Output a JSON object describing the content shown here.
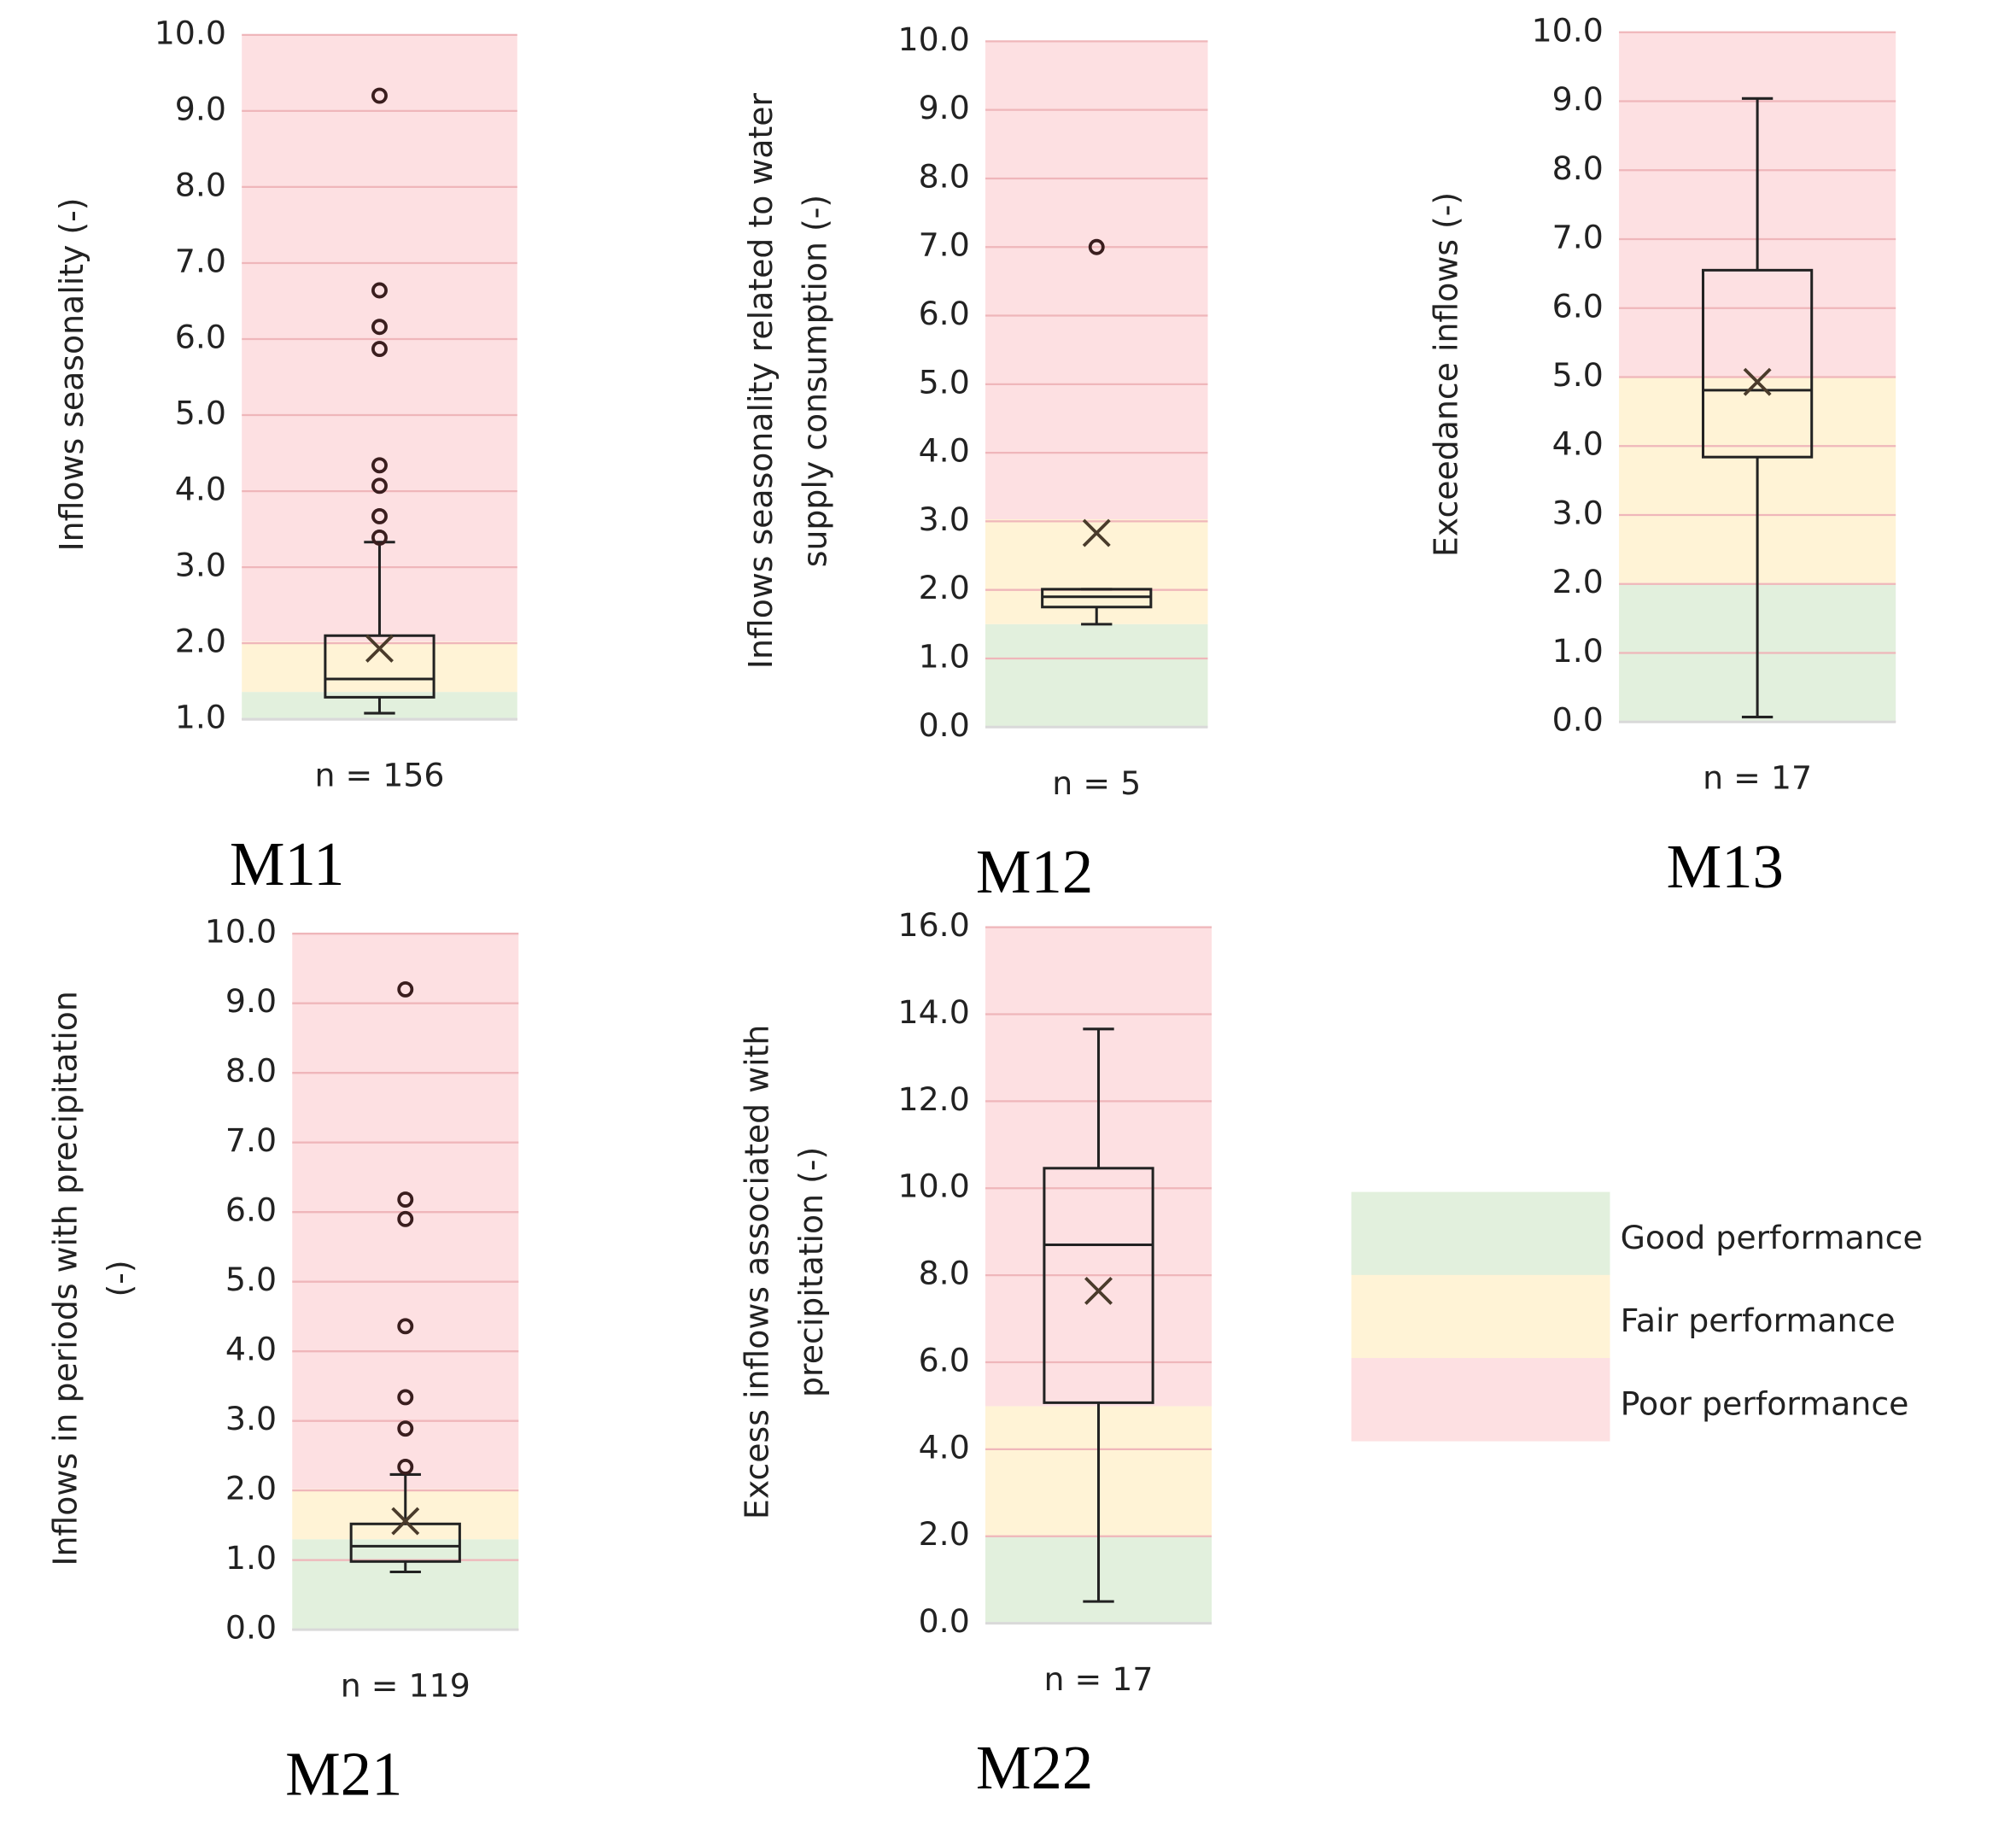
{
  "chart_data": [
    {
      "type": "box",
      "title": "M11",
      "y_label": [
        "Inflows seasonality (-)"
      ],
      "n_label": "n = 156",
      "ylim": [
        1,
        10
      ],
      "yticks": [
        {
          "value": 1,
          "label": "1.0"
        },
        {
          "value": 2,
          "label": "2.0"
        },
        {
          "value": 3,
          "label": "3.0"
        },
        {
          "value": 4,
          "label": "4.0"
        },
        {
          "value": 5,
          "label": "5.0"
        },
        {
          "value": 6,
          "label": "6.0"
        },
        {
          "value": 7,
          "label": "7.0"
        },
        {
          "value": 8,
          "label": "8.0"
        },
        {
          "value": 9,
          "label": "9.0"
        },
        {
          "value": 10,
          "label": "10.0"
        }
      ],
      "box": {
        "min": 1.08,
        "q1": 1.29,
        "median": 1.53,
        "q3": 2.1,
        "max": 3.33,
        "mean": 1.93
      },
      "outliers": [
        9.2,
        6.64,
        6.16,
        5.87,
        4.34,
        4.07,
        3.67,
        3.39
      ],
      "bands": [
        [
          1,
          1.36
        ],
        [
          1.36,
          2.02
        ],
        [
          2.02,
          10
        ]
      ]
    },
    {
      "type": "box",
      "title": "M12",
      "y_label": [
        "Inflows seasonality related to water",
        "supply consumption (-)"
      ],
      "n_label": "n = 5",
      "ylim": [
        0,
        10
      ],
      "yticks": [
        {
          "value": 0,
          "label": "0.0"
        },
        {
          "value": 1,
          "label": "1.0"
        },
        {
          "value": 2,
          "label": "2.0"
        },
        {
          "value": 3,
          "label": "3.0"
        },
        {
          "value": 4,
          "label": "4.0"
        },
        {
          "value": 5,
          "label": "5.0"
        },
        {
          "value": 6,
          "label": "6.0"
        },
        {
          "value": 7,
          "label": "7.0"
        },
        {
          "value": 8,
          "label": "8.0"
        },
        {
          "value": 9,
          "label": "9.0"
        },
        {
          "value": 10,
          "label": "10.0"
        }
      ],
      "box": {
        "min": 1.5,
        "q1": 1.75,
        "median": 1.9,
        "q3": 2.01,
        "max": 2.01,
        "mean": 2.83
      },
      "outliers": [
        7.0
      ],
      "bands": [
        [
          0,
          1.5
        ],
        [
          1.5,
          3.03
        ],
        [
          3.03,
          10
        ]
      ]
    },
    {
      "type": "box",
      "title": "M13",
      "y_label": [
        "Exceedance inflows (-)"
      ],
      "n_label": "n = 17",
      "ylim": [
        0,
        10
      ],
      "yticks": [
        {
          "value": 0,
          "label": "0.0"
        },
        {
          "value": 1,
          "label": "1.0"
        },
        {
          "value": 2,
          "label": "2.0"
        },
        {
          "value": 3,
          "label": "3.0"
        },
        {
          "value": 4,
          "label": "4.0"
        },
        {
          "value": 5,
          "label": "5.0"
        },
        {
          "value": 6,
          "label": "6.0"
        },
        {
          "value": 7,
          "label": "7.0"
        },
        {
          "value": 8,
          "label": "8.0"
        },
        {
          "value": 9,
          "label": "9.0"
        },
        {
          "value": 10,
          "label": "10.0"
        }
      ],
      "box": {
        "min": 0.07,
        "q1": 3.84,
        "median": 4.81,
        "q3": 6.55,
        "max": 9.04,
        "mean": 4.93
      },
      "outliers": [],
      "bands": [
        [
          0,
          2
        ],
        [
          2,
          5
        ],
        [
          5,
          10
        ]
      ]
    },
    {
      "type": "box",
      "title": "M21",
      "y_label": [
        "Inflows in periods with precipitation",
        "(-)"
      ],
      "n_label": "n = 119",
      "ylim": [
        0,
        10
      ],
      "yticks": [
        {
          "value": 0,
          "label": "0.0"
        },
        {
          "value": 1,
          "label": "1.0"
        },
        {
          "value": 2,
          "label": "2.0"
        },
        {
          "value": 3,
          "label": "3.0"
        },
        {
          "value": 4,
          "label": "4.0"
        },
        {
          "value": 5,
          "label": "5.0"
        },
        {
          "value": 6,
          "label": "6.0"
        },
        {
          "value": 7,
          "label": "7.0"
        },
        {
          "value": 8,
          "label": "8.0"
        },
        {
          "value": 9,
          "label": "9.0"
        },
        {
          "value": 10,
          "label": "10.0"
        }
      ],
      "box": {
        "min": 0.83,
        "q1": 0.98,
        "median": 1.2,
        "q3": 1.52,
        "max": 2.23,
        "mean": 1.56
      },
      "outliers": [
        9.2,
        6.18,
        5.9,
        4.36,
        3.34,
        2.89,
        2.34
      ],
      "bands": [
        [
          0,
          1.3
        ],
        [
          1.3,
          2.02
        ],
        [
          2.02,
          10
        ]
      ]
    },
    {
      "type": "box",
      "title": "M22",
      "y_label": [
        "Excess inflows associated with",
        "precipitation (-)"
      ],
      "n_label": "n = 17",
      "ylim": [
        0,
        16
      ],
      "yticks": [
        {
          "value": 0,
          "label": "0.0"
        },
        {
          "value": 2,
          "label": "2.0"
        },
        {
          "value": 4,
          "label": "4.0"
        },
        {
          "value": 6,
          "label": "6.0"
        },
        {
          "value": 8,
          "label": "8.0"
        },
        {
          "value": 10,
          "label": "10.0"
        },
        {
          "value": 12,
          "label": "12.0"
        },
        {
          "value": 14,
          "label": "14.0"
        },
        {
          "value": 16,
          "label": "16.0"
        }
      ],
      "box": {
        "min": 0.5,
        "q1": 5.07,
        "median": 8.7,
        "q3": 10.46,
        "max": 13.66,
        "mean": 7.64
      },
      "outliers": [],
      "bands": [
        [
          0,
          2
        ],
        [
          2,
          4.99
        ],
        [
          4.99,
          16
        ]
      ]
    }
  ],
  "legend": [
    {
      "name": "Good performance",
      "color": "#e2f0dd"
    },
    {
      "name": "Fair performance",
      "color": "#fff3d6"
    },
    {
      "name": "Poor performance",
      "color": "#fde0e2"
    }
  ]
}
